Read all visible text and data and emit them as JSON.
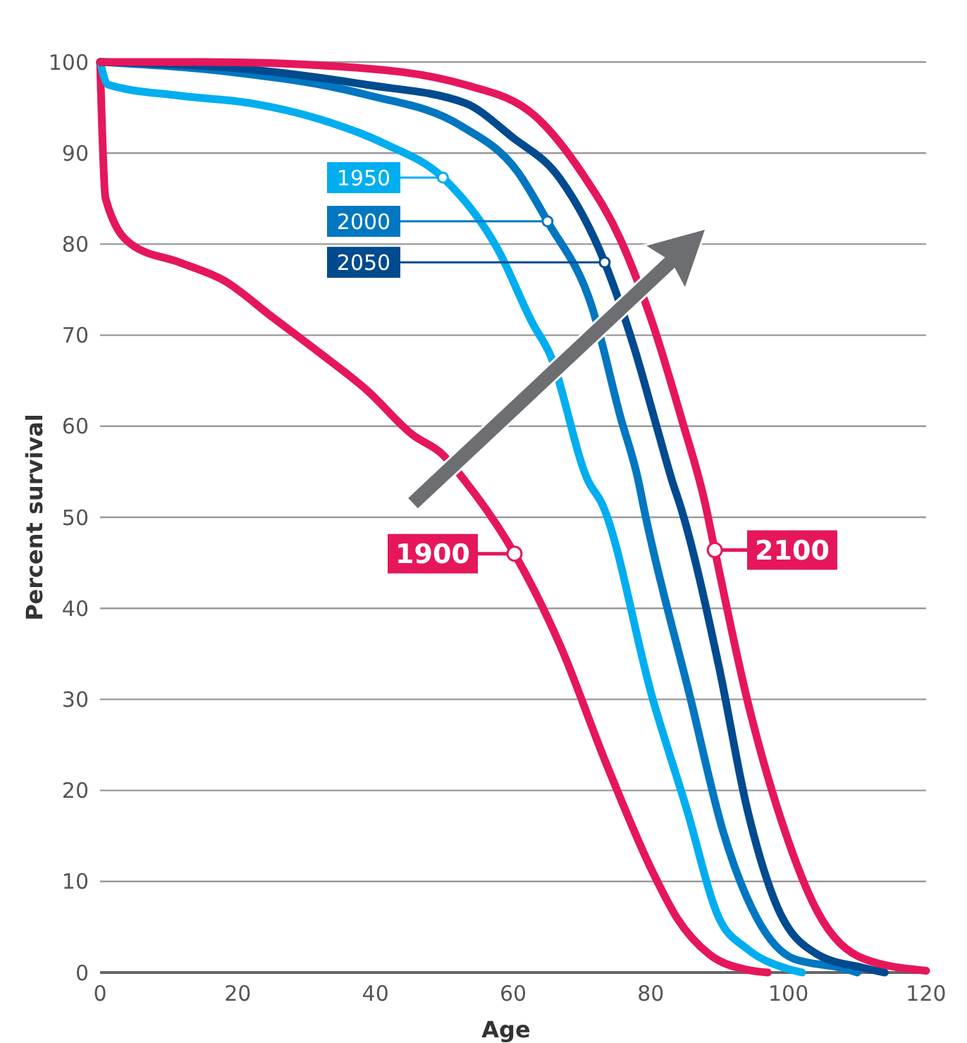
{
  "chart_data": {
    "type": "line",
    "xlabel": "Age",
    "ylabel": "Percent survival",
    "xlim": [
      0,
      120
    ],
    "xticks": [
      0,
      20,
      40,
      60,
      80,
      100,
      120
    ],
    "ylim": [
      0,
      100
    ],
    "yticks": [
      0,
      10,
      20,
      30,
      40,
      50,
      60,
      70,
      80,
      90,
      100
    ],
    "grid": "y",
    "legend": "top left",
    "marker": "none",
    "line_style": "solid",
    "series": [
      {
        "name": "1900",
        "color": "#e5175a",
        "x": [
          0,
          0.8,
          4.5,
          11.5,
          18,
          25,
          32,
          38.7,
          45.5,
          49.6,
          53,
          60.2,
          66.8,
          73.5,
          80.3,
          83.8,
          88.5,
          94,
          97
        ],
        "values": [
          100,
          85,
          80,
          78,
          76,
          72,
          68,
          64,
          59,
          57,
          54,
          46,
          36,
          23,
          11,
          6,
          2,
          0.3,
          0
        ]
      },
      {
        "name": "1950",
        "color": "#00aeef",
        "x": [
          0,
          1.2,
          11.5,
          21.7,
          32,
          41.4,
          49.8,
          57.8,
          62.9,
          65.3,
          70.9,
          72.9,
          80.3,
          85.2,
          89.9,
          94,
          99.5,
          102
        ],
        "values": [
          100,
          97.5,
          96.3,
          95.5,
          93.7,
          91,
          87.3,
          79.4,
          71.2,
          68,
          54,
          51.5,
          30,
          18,
          6,
          2.6,
          0.5,
          0
        ]
      },
      {
        "name": "2000",
        "color": "#0077c0",
        "x": [
          0,
          18,
          38.7,
          52.4,
          60.6,
          65,
          71.5,
          75.6,
          78.2,
          79,
          85.8,
          90.5,
          95.4,
          100.8,
          107.7,
          110
        ],
        "values": [
          100,
          99,
          96.4,
          93,
          88,
          82.5,
          73,
          61,
          54,
          51,
          30,
          15.5,
          6,
          1.5,
          0.5,
          0
        ]
      },
      {
        "name": "2050",
        "color": "#004a8f",
        "x": [
          0,
          20,
          38.7,
          53,
          59.8,
          66.8,
          73.3,
          77.6,
          81.1,
          83.1,
          84.4,
          89.9,
          94,
          98.1,
          104.2,
          111,
          114
        ],
        "values": [
          100,
          99.3,
          97.5,
          95.5,
          91.8,
          87.2,
          78,
          68.6,
          59.3,
          54,
          51,
          33.6,
          18,
          7.7,
          2,
          0.5,
          0
        ]
      },
      {
        "name": "2100",
        "color": "#e5175a",
        "x": [
          0,
          15,
          35,
          53,
          63.3,
          70,
          75.6,
          80.3,
          84.4,
          87.9,
          89.3,
          94,
          99.5,
          104.2,
          111,
          120
        ],
        "values": [
          100,
          100,
          99.5,
          97.5,
          94,
          87.8,
          80.5,
          71.2,
          61,
          51.5,
          46.4,
          30,
          15.5,
          6.7,
          1.5,
          0.2
        ]
      }
    ]
  }
}
